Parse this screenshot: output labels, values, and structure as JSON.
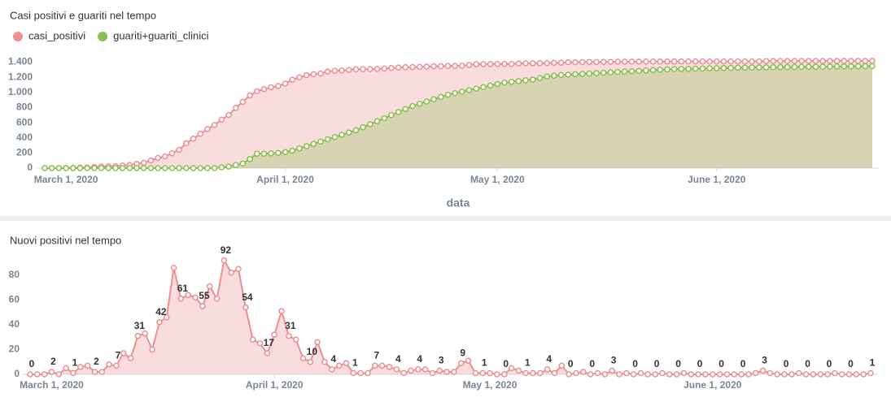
{
  "chart_data": [
    {
      "type": "line",
      "title": "Casi positivi e guariti nel tempo",
      "x_label": "data",
      "legend": "top-left",
      "area": true,
      "grid": false,
      "x": [
        "2020-02-27",
        "2020-02-28",
        "2020-02-29",
        "2020-03-01",
        "2020-03-02",
        "2020-03-03",
        "2020-03-04",
        "2020-03-05",
        "2020-03-06",
        "2020-03-07",
        "2020-03-08",
        "2020-03-09",
        "2020-03-10",
        "2020-03-11",
        "2020-03-12",
        "2020-03-13",
        "2020-03-14",
        "2020-03-15",
        "2020-03-16",
        "2020-03-17",
        "2020-03-18",
        "2020-03-19",
        "2020-03-20",
        "2020-03-21",
        "2020-03-22",
        "2020-03-23",
        "2020-03-24",
        "2020-03-25",
        "2020-03-26",
        "2020-03-27",
        "2020-03-28",
        "2020-03-29",
        "2020-03-30",
        "2020-03-31",
        "2020-04-01",
        "2020-04-02",
        "2020-04-03",
        "2020-04-04",
        "2020-04-05",
        "2020-04-06",
        "2020-04-07",
        "2020-04-08",
        "2020-04-09",
        "2020-04-10",
        "2020-04-11",
        "2020-04-12",
        "2020-04-13",
        "2020-04-14",
        "2020-04-15",
        "2020-04-16",
        "2020-04-17",
        "2020-04-18",
        "2020-04-19",
        "2020-04-20",
        "2020-04-21",
        "2020-04-22",
        "2020-04-23",
        "2020-04-24",
        "2020-04-25",
        "2020-04-26",
        "2020-04-27",
        "2020-04-28",
        "2020-04-29",
        "2020-04-30",
        "2020-05-01",
        "2020-05-02",
        "2020-05-03",
        "2020-05-04",
        "2020-05-05",
        "2020-05-06",
        "2020-05-07",
        "2020-05-08",
        "2020-05-09",
        "2020-05-10",
        "2020-05-11",
        "2020-05-12",
        "2020-05-13",
        "2020-05-14",
        "2020-05-15",
        "2020-05-16",
        "2020-05-17",
        "2020-05-18",
        "2020-05-19",
        "2020-05-20",
        "2020-05-21",
        "2020-05-22",
        "2020-05-23",
        "2020-05-24",
        "2020-05-25",
        "2020-05-26",
        "2020-05-27",
        "2020-05-28",
        "2020-05-29",
        "2020-05-30",
        "2020-05-31",
        "2020-06-01",
        "2020-06-02",
        "2020-06-03",
        "2020-06-04",
        "2020-06-05",
        "2020-06-06",
        "2020-06-07",
        "2020-06-08",
        "2020-06-09",
        "2020-06-10",
        "2020-06-11",
        "2020-06-12",
        "2020-06-13",
        "2020-06-14",
        "2020-06-15",
        "2020-06-16",
        "2020-06-17",
        "2020-06-18",
        "2020-06-19",
        "2020-06-20",
        "2020-06-21",
        "2020-06-22",
        "2020-06-23"
      ],
      "xlim": [
        "2020-02-27",
        "2020-06-23"
      ],
      "xticks": [
        {
          "value": "2020-03-01",
          "label": "March 1, 2020"
        },
        {
          "value": "2020-04-01",
          "label": "April 1, 2020"
        },
        {
          "value": "2020-05-01",
          "label": "May 1, 2020"
        },
        {
          "value": "2020-06-01",
          "label": "June 1, 2020"
        }
      ],
      "ylim": [
        0,
        1470
      ],
      "yticks": [
        0,
        200,
        400,
        600,
        800,
        {
          "value": 1000,
          "label": "1.000"
        },
        {
          "value": 1200,
          "label": "1.200"
        },
        {
          "value": 1400,
          "label": "1.400"
        }
      ],
      "series": [
        {
          "name": "casi_positivi",
          "color": "#ec8f92",
          "values": [
            0,
            0,
            0,
            2,
            2,
            7,
            8,
            14,
            21,
            23,
            25,
            33,
            40,
            57,
            70,
            101,
            134,
            154,
            196,
            242,
            328,
            389,
            453,
            515,
            570,
            641,
            702,
            794,
            876,
            961,
            1015,
            1043,
            1068,
            1085,
            1117,
            1168,
            1199,
            1227,
            1240,
            1250,
            1276,
            1286,
            1290,
            1297,
            1306,
            1307,
            1308,
            1309,
            1316,
            1323,
            1329,
            1333,
            1334,
            1337,
            1341,
            1345,
            1346,
            1349,
            1351,
            1353,
            1362,
            1373,
            1374,
            1375,
            1376,
            1376,
            1376,
            1381,
            1384,
            1385,
            1386,
            1387,
            1391,
            1392,
            1399,
            1399,
            1400,
            1402,
            1402,
            1403,
            1403,
            1406,
            1406,
            1407,
            1407,
            1408,
            1408,
            1408,
            1409,
            1409,
            1409,
            1410,
            1410,
            1410,
            1410,
            1410,
            1410,
            1410,
            1410,
            1410,
            1410,
            1411,
            1414,
            1415,
            1415,
            1415,
            1415,
            1416,
            1416,
            1416,
            1416,
            1416,
            1417,
            1417,
            1417,
            1417,
            1417,
            1418
          ]
        },
        {
          "name": "guariti+guariti_clinici",
          "color": "#88bf4d",
          "values": [
            0,
            0,
            0,
            0,
            0,
            0,
            0,
            0,
            0,
            0,
            0,
            0,
            0,
            0,
            0,
            0,
            0,
            0,
            0,
            0,
            0,
            0,
            0,
            0,
            0,
            10,
            20,
            40,
            60,
            120,
            190,
            190,
            195,
            200,
            210,
            230,
            260,
            290,
            320,
            350,
            380,
            410,
            440,
            470,
            500,
            540,
            580,
            620,
            660,
            700,
            740,
            780,
            820,
            850,
            880,
            910,
            940,
            970,
            990,
            1010,
            1030,
            1050,
            1070,
            1090,
            1110,
            1130,
            1140,
            1150,
            1160,
            1170,
            1190,
            1210,
            1220,
            1230,
            1235,
            1240,
            1245,
            1250,
            1255,
            1260,
            1265,
            1270,
            1275,
            1280,
            1285,
            1290,
            1295,
            1300,
            1305,
            1308,
            1310,
            1312,
            1314,
            1316,
            1318,
            1320,
            1322,
            1324,
            1326,
            1328,
            1330,
            1331,
            1332,
            1333,
            1334,
            1335,
            1336,
            1337,
            1338,
            1339,
            1340,
            1341,
            1342,
            1343,
            1344,
            1345,
            1346,
            1348
          ]
        }
      ]
    },
    {
      "type": "line",
      "title": "Nuovi positivi nel tempo",
      "area": true,
      "grid": false,
      "color": "#ec8f92",
      "data_label_step": 3,
      "x": [
        "2020-02-27",
        "2020-02-28",
        "2020-02-29",
        "2020-03-01",
        "2020-03-02",
        "2020-03-03",
        "2020-03-04",
        "2020-03-05",
        "2020-03-06",
        "2020-03-07",
        "2020-03-08",
        "2020-03-09",
        "2020-03-10",
        "2020-03-11",
        "2020-03-12",
        "2020-03-13",
        "2020-03-14",
        "2020-03-15",
        "2020-03-16",
        "2020-03-17",
        "2020-03-18",
        "2020-03-19",
        "2020-03-20",
        "2020-03-21",
        "2020-03-22",
        "2020-03-23",
        "2020-03-24",
        "2020-03-25",
        "2020-03-26",
        "2020-03-27",
        "2020-03-28",
        "2020-03-29",
        "2020-03-30",
        "2020-03-31",
        "2020-04-01",
        "2020-04-02",
        "2020-04-03",
        "2020-04-04",
        "2020-04-05",
        "2020-04-06",
        "2020-04-07",
        "2020-04-08",
        "2020-04-09",
        "2020-04-10",
        "2020-04-11",
        "2020-04-12",
        "2020-04-13",
        "2020-04-14",
        "2020-04-15",
        "2020-04-16",
        "2020-04-17",
        "2020-04-18",
        "2020-04-19",
        "2020-04-20",
        "2020-04-21",
        "2020-04-22",
        "2020-04-23",
        "2020-04-24",
        "2020-04-25",
        "2020-04-26",
        "2020-04-27",
        "2020-04-28",
        "2020-04-29",
        "2020-04-30",
        "2020-05-01",
        "2020-05-02",
        "2020-05-03",
        "2020-05-04",
        "2020-05-05",
        "2020-05-06",
        "2020-05-07",
        "2020-05-08",
        "2020-05-09",
        "2020-05-10",
        "2020-05-11",
        "2020-05-12",
        "2020-05-13",
        "2020-05-14",
        "2020-05-15",
        "2020-05-16",
        "2020-05-17",
        "2020-05-18",
        "2020-05-19",
        "2020-05-20",
        "2020-05-21",
        "2020-05-22",
        "2020-05-23",
        "2020-05-24",
        "2020-05-25",
        "2020-05-26",
        "2020-05-27",
        "2020-05-28",
        "2020-05-29",
        "2020-05-30",
        "2020-05-31",
        "2020-06-01",
        "2020-06-02",
        "2020-06-03",
        "2020-06-04",
        "2020-06-05",
        "2020-06-06",
        "2020-06-07",
        "2020-06-08",
        "2020-06-09",
        "2020-06-10",
        "2020-06-11",
        "2020-06-12",
        "2020-06-13",
        "2020-06-14",
        "2020-06-15",
        "2020-06-16",
        "2020-06-17",
        "2020-06-18",
        "2020-06-19",
        "2020-06-20",
        "2020-06-21",
        "2020-06-22",
        "2020-06-23"
      ],
      "xlim": [
        "2020-02-27",
        "2020-06-23"
      ],
      "xticks": [
        {
          "value": "2020-03-01",
          "label": "March 1, 2020"
        },
        {
          "value": "2020-04-01",
          "label": "April 1, 2020"
        },
        {
          "value": "2020-05-01",
          "label": "May 1, 2020"
        },
        {
          "value": "2020-06-01",
          "label": "June 1, 2020"
        }
      ],
      "ylim": [
        0,
        95
      ],
      "yticks": [
        0,
        20,
        40,
        60,
        80
      ],
      "values": [
        0,
        0,
        0,
        2,
        0,
        5,
        1,
        6,
        7,
        2,
        2,
        8,
        7,
        17,
        13,
        31,
        33,
        20,
        42,
        46,
        86,
        61,
        64,
        62,
        55,
        71,
        61,
        92,
        82,
        85,
        54,
        28,
        25,
        17,
        32,
        51,
        31,
        28,
        13,
        10,
        26,
        10,
        4,
        7,
        9,
        1,
        1,
        1,
        7,
        7,
        6,
        4,
        1,
        3,
        4,
        4,
        1,
        3,
        2,
        2,
        9,
        11,
        1,
        1,
        1,
        0,
        0,
        5,
        3,
        1,
        1,
        1,
        4,
        1,
        7,
        0,
        1,
        2,
        0,
        1,
        0,
        3,
        0,
        1,
        0,
        1,
        0,
        0,
        1,
        0,
        0,
        1,
        0,
        0,
        0,
        0,
        0,
        0,
        0,
        0,
        0,
        1,
        3,
        1,
        0,
        0,
        0,
        1,
        0,
        0,
        0,
        0,
        1,
        0,
        0,
        0,
        0,
        1
      ]
    }
  ]
}
